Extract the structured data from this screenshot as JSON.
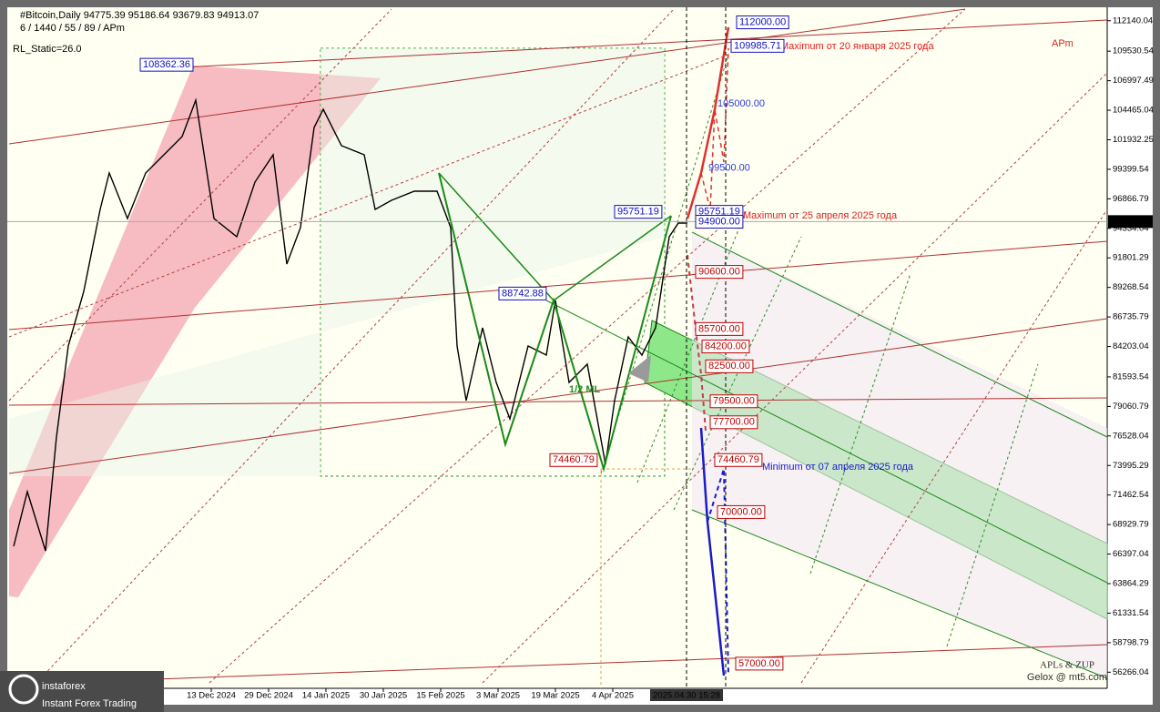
{
  "chart_data": {
    "type": "levels",
    "header": "#Bitcoin,Daily  94775.39 95186.64 93679.83 94913.07",
    "subheader": "6 / 1440 / 55 / 89 / APm",
    "indicator": "RL_Static=26.0",
    "ylim": [
      54883,
      113293
    ],
    "yticks": [
      112140.04,
      109530.54,
      106997.49,
      104465.04,
      101932.25,
      99399.54,
      96866.79,
      94334.04,
      91801.29,
      89268.54,
      86735.79,
      84203.04,
      81593.54,
      79060.79,
      76528.04,
      73995.29,
      71462.54,
      68929.79,
      66397.04,
      63864.29,
      61331.54,
      58798.79,
      56266.04
    ],
    "current_price": 94913.07,
    "categories": [
      "13 Dec 2024",
      "29 Dec 2024",
      "14 Jan 2025",
      "30 Jan 2025",
      "15 Feb 2025",
      "3 Mar 2025",
      "19 Mar 2025",
      "4 Apr 2025"
    ],
    "cursor_time": "2025.04.30 15:28",
    "levels": [
      {
        "value": 112000,
        "label": "112000.00",
        "color": "#1010c0",
        "boxed": true
      },
      {
        "value": 109985.71,
        "label": "109985.71",
        "color": "#1010c0",
        "boxed": true
      },
      {
        "value": 108362.36,
        "label": "108362.36",
        "color": "#1010c0",
        "boxed": true
      },
      {
        "value": 105000,
        "label": "105000.00",
        "color": "#2a3ad8",
        "boxed": false
      },
      {
        "value": 99500,
        "label": "99500.00",
        "color": "#2a3ad8",
        "boxed": false
      },
      {
        "value": 95751.19,
        "label": "95751.19",
        "color": "#1010c0",
        "boxed": true
      },
      {
        "value": 95751.19,
        "label": "95751.19",
        "color": "#1010c0",
        "boxed": true
      },
      {
        "value": 94900,
        "label": "94900.00",
        "color": "#1010c0",
        "boxed": true
      },
      {
        "value": 90600,
        "label": "90600.00",
        "color": "#c00000",
        "boxed": true
      },
      {
        "value": 88742.88,
        "label": "88742.88",
        "color": "#1010c0",
        "boxed": true
      },
      {
        "value": 85700,
        "label": "85700.00",
        "color": "#c00000",
        "boxed": true
      },
      {
        "value": 84200,
        "label": "84200.00",
        "color": "#c00000",
        "boxed": true
      },
      {
        "value": 82500,
        "label": "82500.00",
        "color": "#c00000",
        "boxed": true
      },
      {
        "value": 79500,
        "label": "79500.00",
        "color": "#c00000",
        "boxed": true
      },
      {
        "value": 77700,
        "label": "77700.00",
        "color": "#c00000",
        "boxed": true
      },
      {
        "value": 74460.79,
        "label": "74460.79",
        "color": "#c00000",
        "boxed": true
      },
      {
        "value": 74460.79,
        "label": "74460.79",
        "color": "#c00000",
        "boxed": true
      },
      {
        "value": 70000,
        "label": "70000.00",
        "color": "#c00000",
        "boxed": true
      },
      {
        "value": 57000,
        "label": "57000.00",
        "color": "#c00000",
        "boxed": true
      }
    ],
    "annotations": [
      "Maximum от 20 января 2025 года",
      "Maximum от 25 апреля 2025 года",
      "Minimum от 07 апреля 2025 года",
      "APm",
      "1/2 ML"
    ],
    "signature": [
      "APLs & ZUP",
      "Gelox @ mt5.com"
    ],
    "logo": [
      "instaforex",
      "Instant Forex Trading"
    ]
  }
}
